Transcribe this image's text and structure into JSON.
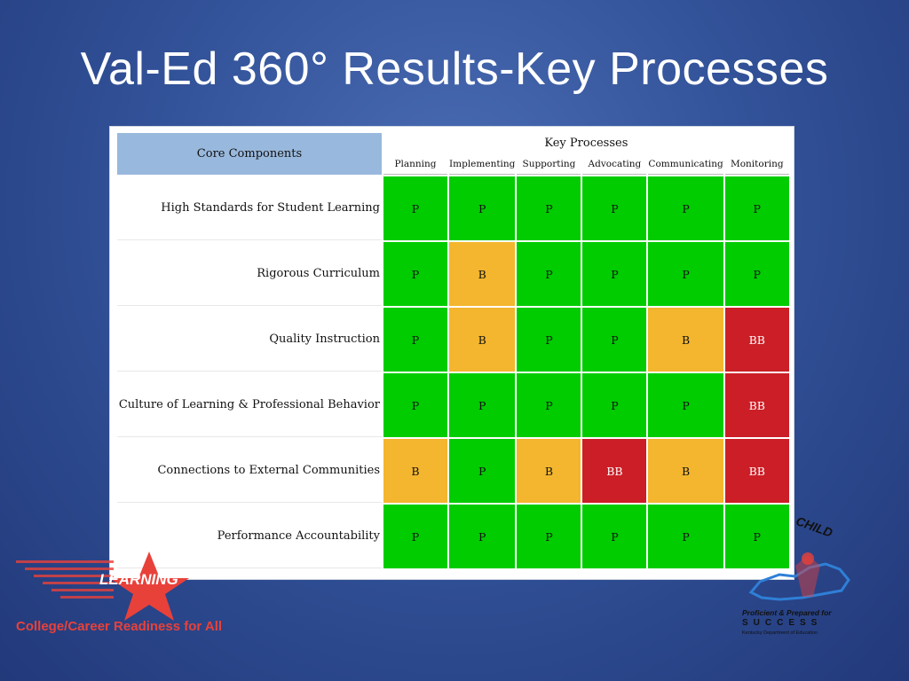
{
  "title": "Val-Ed 360° Results-Key Processes",
  "table": {
    "core_header": "Core Components",
    "group_header": "Key Processes",
    "processes": [
      "Planning",
      "Implementing",
      "Supporting",
      "Advocating",
      "Communicating",
      "Monitoring"
    ],
    "rows": [
      {
        "label": "High Standards for Student Learning",
        "values": [
          "P",
          "P",
          "P",
          "P",
          "P",
          "P"
        ]
      },
      {
        "label": "Rigorous Curriculum",
        "values": [
          "P",
          "B",
          "P",
          "P",
          "P",
          "P"
        ]
      },
      {
        "label": "Quality Instruction",
        "values": [
          "P",
          "B",
          "P",
          "P",
          "B",
          "BB"
        ]
      },
      {
        "label": "Culture of Learning & Professional Behavior",
        "values": [
          "P",
          "P",
          "P",
          "P",
          "P",
          "BB"
        ]
      },
      {
        "label": "Connections to External Communities",
        "values": [
          "B",
          "P",
          "B",
          "BB",
          "B",
          "BB"
        ]
      },
      {
        "label": "Performance Accountability",
        "values": [
          "P",
          "P",
          "P",
          "P",
          "P",
          "P"
        ]
      }
    ]
  },
  "colors": {
    "P": "#00cc00",
    "B": "#f3b62e",
    "BB": "#cc1e26",
    "header_blue": "#99b8dd"
  },
  "logo_left": {
    "word": "LEARNING",
    "tagline": "College/Career Readiness for All"
  },
  "logo_right": {
    "word": "CHILD",
    "line1": "Proficient & Prepared for",
    "line2": "SUCCESS",
    "line3": "Kentucky Department of Education"
  }
}
